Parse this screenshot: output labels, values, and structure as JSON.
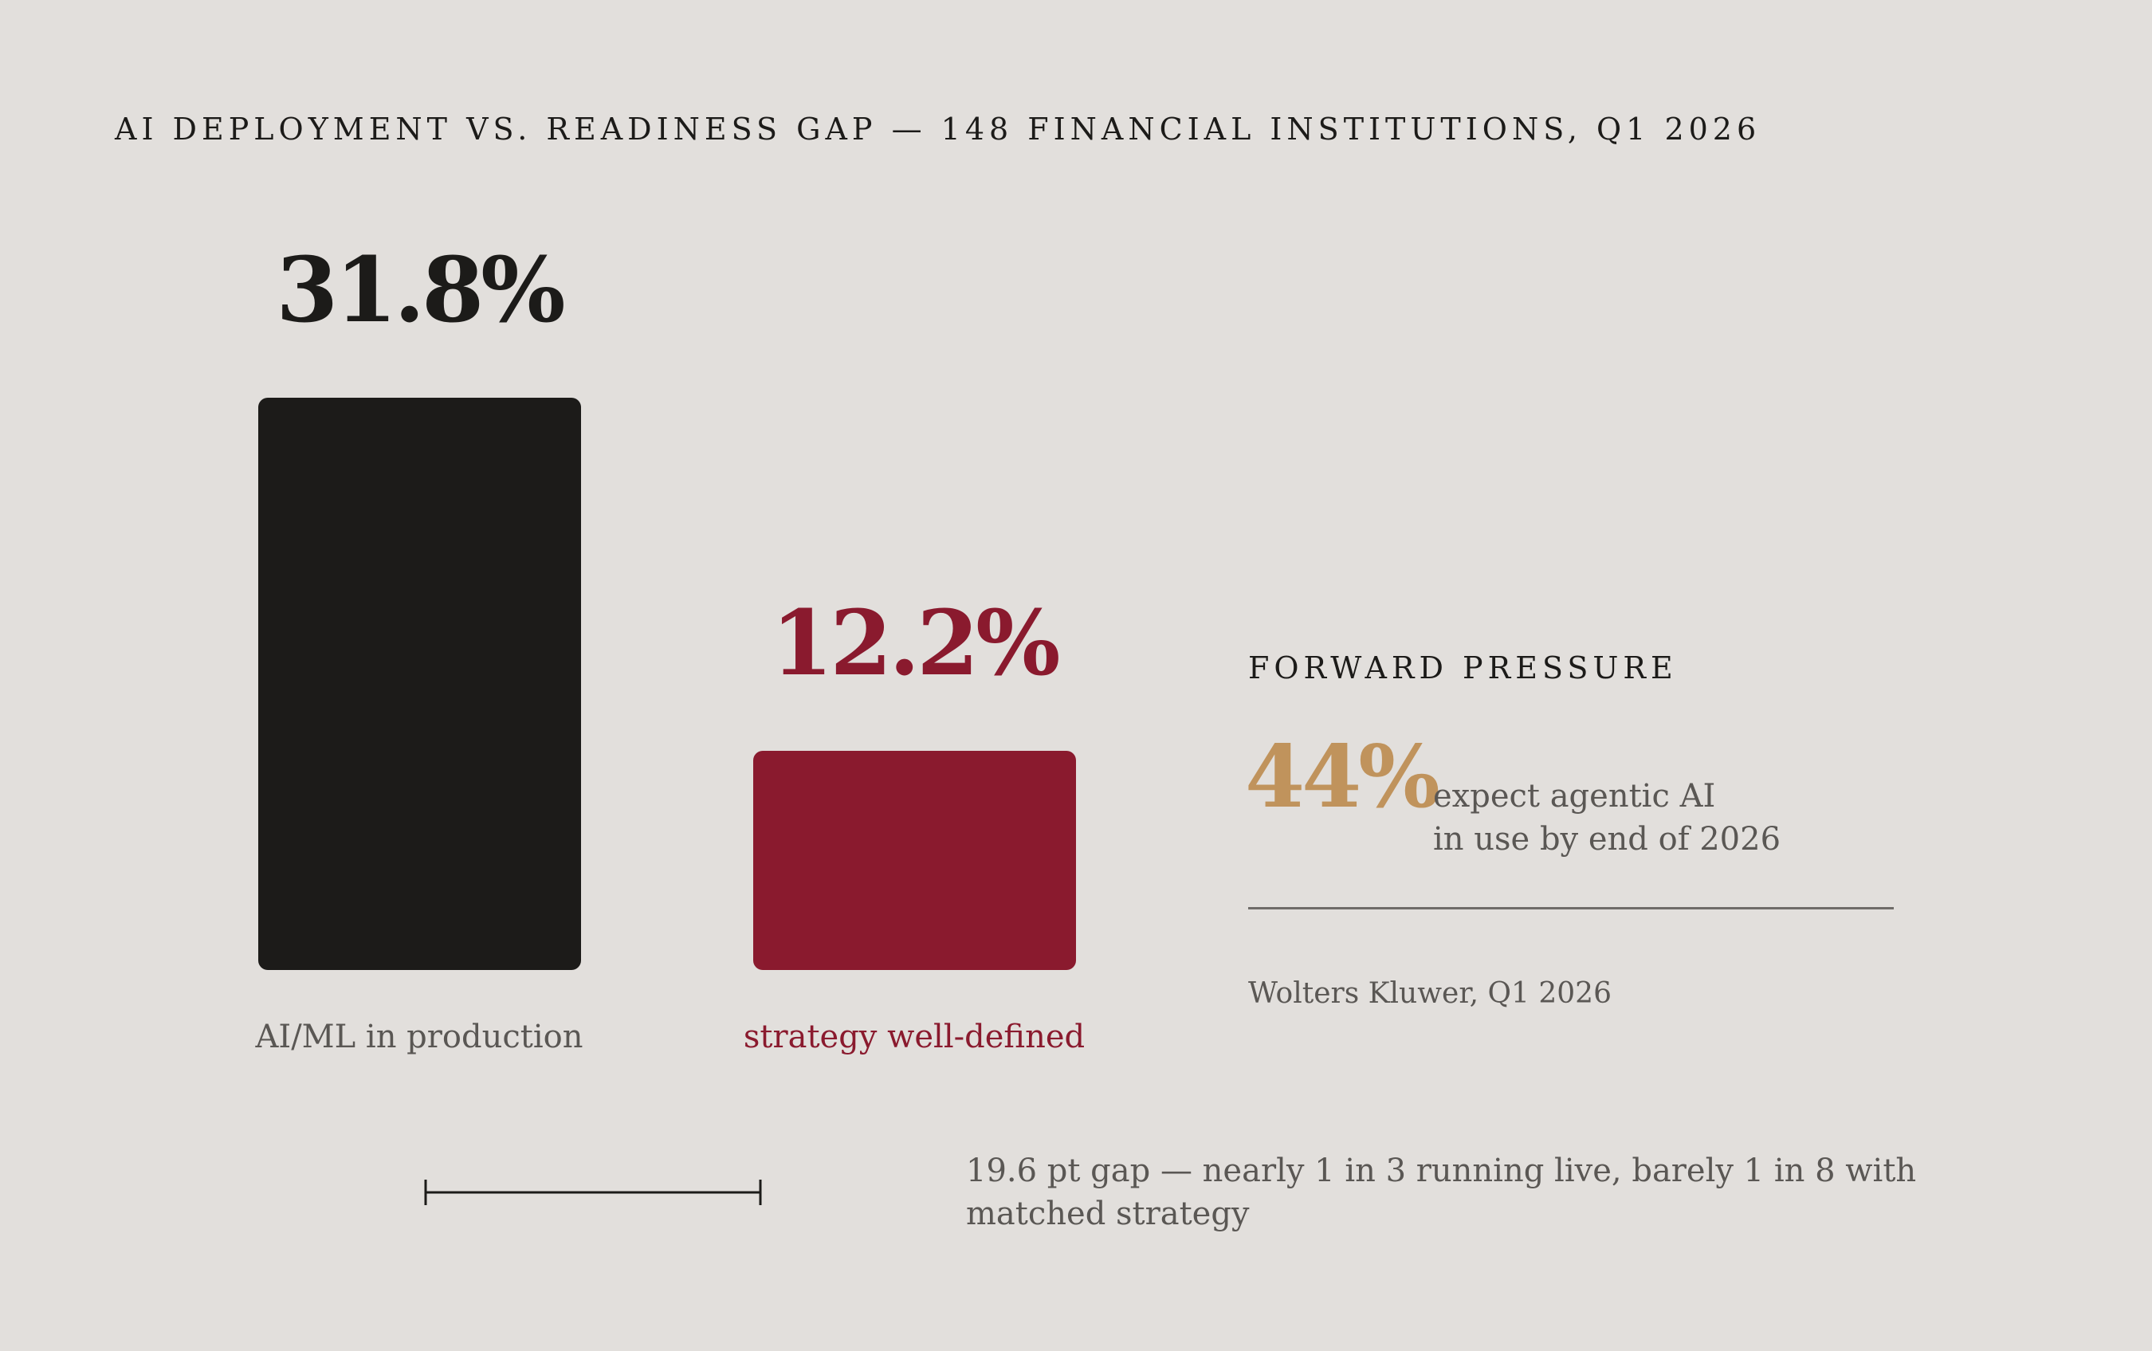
{
  "title": "AI DEPLOYMENT VS. READINESS GAP — 148 FINANCIAL INSTITUTIONS, Q1 2026",
  "chart_data": {
    "type": "bar",
    "categories": [
      "AI/ML in production",
      "strategy well-defined"
    ],
    "values": [
      31.8,
      12.2
    ],
    "value_labels": [
      "31.8%",
      "12.2%"
    ],
    "colors": [
      "#1c1b19",
      "#8a1a2e"
    ],
    "category_label_colors": [
      "#5a5754",
      "#8a1a2e"
    ],
    "ylim": [
      0,
      31.8
    ],
    "grid": false
  },
  "gap_note": "19.6 pt gap — nearly 1 in 3 running live, barely 1 in 8 with matched strategy",
  "forward_pressure": {
    "heading": "FORWARD PRESSURE",
    "value": "44%",
    "line1": "expect agentic AI",
    "line2": "in use by end of 2026"
  },
  "source": "Wolters Kluwer, Q1 2026",
  "colors": {
    "background": "#e2dfdc",
    "ink": "#1c1b19",
    "accent_red": "#8a1a2e",
    "accent_gold": "#c0935c",
    "muted": "#5a5754"
  }
}
